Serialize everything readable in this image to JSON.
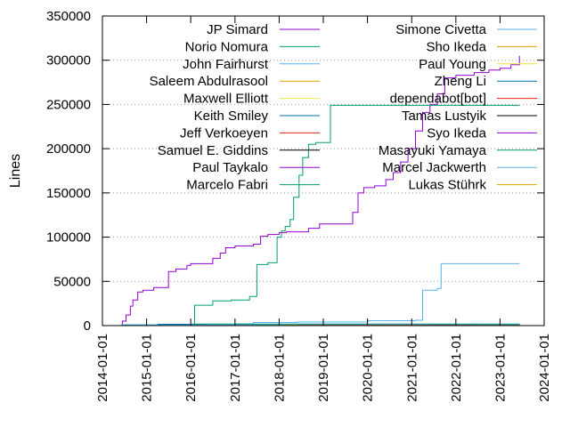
{
  "chart_data": {
    "type": "line",
    "title": "",
    "xlabel": "",
    "ylabel": "Lines",
    "ylim": [
      0,
      350000
    ],
    "xlim": [
      "2014-01-01",
      "2024-01-01"
    ],
    "yticks": [
      0,
      50000,
      100000,
      150000,
      200000,
      250000,
      300000,
      350000
    ],
    "xticks": [
      "2014-01-01",
      "2015-01-01",
      "2016-01-01",
      "2017-01-01",
      "2018-01-01",
      "2019-01-01",
      "2020-01-01",
      "2021-01-01",
      "2022-01-01",
      "2023-01-01",
      "2024-01-01"
    ],
    "grid": "horizontal dotted at 50000-step ticks",
    "legend_placement": "inside, top, two columns",
    "series": [
      {
        "name": "JP Simard",
        "color": "#9400d3",
        "points": [
          [
            "2014-05-01",
            0
          ],
          [
            "2014-06-15",
            5000
          ],
          [
            "2014-07-15",
            12000
          ],
          [
            "2014-08-20",
            22000
          ],
          [
            "2014-09-10",
            29000
          ],
          [
            "2014-10-20",
            38000
          ],
          [
            "2014-12-01",
            40000
          ],
          [
            "2015-03-01",
            43000
          ],
          [
            "2015-07-01",
            61000
          ],
          [
            "2015-09-01",
            64000
          ],
          [
            "2015-12-01",
            68000
          ],
          [
            "2016-01-01",
            70000
          ],
          [
            "2016-07-01",
            76000
          ],
          [
            "2016-09-01",
            82000
          ],
          [
            "2016-10-15",
            88000
          ],
          [
            "2017-01-01",
            90000
          ],
          [
            "2017-06-01",
            92000
          ],
          [
            "2017-08-01",
            101000
          ],
          [
            "2017-10-01",
            103000
          ],
          [
            "2018-01-01",
            105000
          ],
          [
            "2018-03-01",
            106000
          ],
          [
            "2018-09-01",
            110000
          ],
          [
            "2018-12-01",
            115000
          ],
          [
            "2019-08-01",
            115000
          ],
          [
            "2019-09-01",
            128000
          ],
          [
            "2019-10-15",
            150000
          ],
          [
            "2019-12-01",
            156000
          ],
          [
            "2020-03-01",
            158000
          ],
          [
            "2020-06-01",
            165000
          ],
          [
            "2020-08-01",
            173000
          ],
          [
            "2020-10-01",
            185000
          ],
          [
            "2020-12-01",
            200000
          ],
          [
            "2021-02-01",
            220000
          ],
          [
            "2021-04-01",
            241000
          ],
          [
            "2021-06-01",
            250000
          ],
          [
            "2021-08-01",
            262000
          ],
          [
            "2021-10-01",
            280000
          ],
          [
            "2022-01-01",
            283000
          ],
          [
            "2022-06-01",
            286000
          ],
          [
            "2022-10-01",
            289000
          ],
          [
            "2023-01-01",
            291000
          ],
          [
            "2023-04-01",
            295000
          ],
          [
            "2023-06-10",
            305000
          ]
        ]
      },
      {
        "name": "Norio Nomura",
        "color": "#009e73",
        "points": [
          [
            "2016-02-01",
            0
          ],
          [
            "2016-02-02",
            23000
          ],
          [
            "2016-07-01",
            28000
          ],
          [
            "2016-12-01",
            29000
          ],
          [
            "2017-05-01",
            33000
          ],
          [
            "2017-07-01",
            69000
          ],
          [
            "2017-10-01",
            71000
          ],
          [
            "2017-12-15",
            100000
          ],
          [
            "2018-01-20",
            107000
          ],
          [
            "2018-02-20",
            112000
          ],
          [
            "2018-04-01",
            120000
          ],
          [
            "2018-05-01",
            145000
          ],
          [
            "2018-06-15",
            170000
          ],
          [
            "2018-07-15",
            190000
          ],
          [
            "2018-09-01",
            205000
          ],
          [
            "2018-11-01",
            207000
          ],
          [
            "2019-03-01",
            249000
          ],
          [
            "2023-06-10",
            249000
          ]
        ]
      },
      {
        "name": "John Fairhurst",
        "color": "#56b4e9",
        "points": [
          [
            "2014-06-01",
            1000
          ],
          [
            "2017-01-01",
            2000
          ],
          [
            "2017-06-01",
            3500
          ],
          [
            "2018-06-01",
            4000
          ],
          [
            "2020-01-01",
            5500
          ],
          [
            "2021-02-01",
            6000
          ],
          [
            "2021-04-01",
            40000
          ],
          [
            "2021-08-01",
            42000
          ],
          [
            "2021-09-01",
            70000
          ],
          [
            "2023-06-10",
            70000
          ]
        ]
      },
      {
        "name": "Saleem Abdulrasool",
        "color": "#e69f00",
        "points": [
          [
            "2019-08-01",
            1200
          ],
          [
            "2023-06-10",
            1200
          ]
        ]
      },
      {
        "name": "Maxwell Elliott",
        "color": "#f0e442",
        "points": [
          [
            "2020-01-01",
            1000
          ],
          [
            "2023-06-10",
            1000
          ]
        ]
      },
      {
        "name": "Keith Smiley",
        "color": "#0072b2",
        "points": [
          [
            "2015-04-01",
            1500
          ],
          [
            "2023-06-10",
            2000
          ]
        ]
      },
      {
        "name": "Jeff Verkoeyen",
        "color": "#e51e10",
        "points": [
          [
            "2020-06-01",
            800
          ],
          [
            "2023-06-10",
            800
          ]
        ]
      },
      {
        "name": "Samuel E. Giddins",
        "color": "#000000",
        "points": [
          [
            "2016-06-01",
            700
          ],
          [
            "2023-06-10",
            700
          ]
        ]
      },
      {
        "name": "Paul Taykalo",
        "color": "#9400d3",
        "points": [
          [
            "2020-01-01",
            600
          ],
          [
            "2023-06-10",
            600
          ]
        ]
      },
      {
        "name": "Marcelo Fabri",
        "color": "#009e73",
        "points": [
          [
            "2016-01-01",
            1800
          ],
          [
            "2023-06-10",
            1800
          ]
        ]
      },
      {
        "name": "Simone Civetta",
        "color": "#56b4e9",
        "points": [
          [
            "2016-05-01",
            900
          ],
          [
            "2023-06-10",
            900
          ]
        ]
      },
      {
        "name": "Sho Ikeda",
        "color": "#e69f00",
        "points": [
          [
            "2018-03-01",
            500
          ],
          [
            "2023-06-10",
            500
          ]
        ]
      },
      {
        "name": "Paul Young",
        "color": "#f0e442",
        "points": [
          [
            "2022-01-01",
            400
          ],
          [
            "2023-06-10",
            400
          ]
        ]
      },
      {
        "name": "Zheng Li",
        "color": "#0072b2",
        "points": [
          [
            "2022-03-01",
            300
          ],
          [
            "2023-06-10",
            300
          ]
        ]
      },
      {
        "name": "dependabot[bot]",
        "color": "#e51e10",
        "points": [
          [
            "2021-03-01",
            200
          ],
          [
            "2023-06-10",
            200
          ]
        ]
      },
      {
        "name": "Tamas Lustyik",
        "color": "#000000",
        "points": [
          [
            "2021-06-01",
            250
          ],
          [
            "2023-06-10",
            250
          ]
        ]
      },
      {
        "name": "Syo Ikeda",
        "color": "#9400d3",
        "points": [
          [
            "2018-06-01",
            300
          ],
          [
            "2023-06-10",
            300
          ]
        ]
      },
      {
        "name": "Masayuki Yamaya",
        "color": "#009e73",
        "points": [
          [
            "2022-06-01",
            200
          ],
          [
            "2023-06-10",
            200
          ]
        ]
      },
      {
        "name": "Marcel Jackwerth",
        "color": "#56b4e9",
        "points": [
          [
            "2017-03-01",
            150
          ],
          [
            "2023-06-10",
            150
          ]
        ]
      },
      {
        "name": "Lukas Stührk",
        "color": "#e69f00",
        "points": [
          [
            "2017-09-01",
            100
          ],
          [
            "2023-06-10",
            100
          ]
        ]
      }
    ]
  }
}
